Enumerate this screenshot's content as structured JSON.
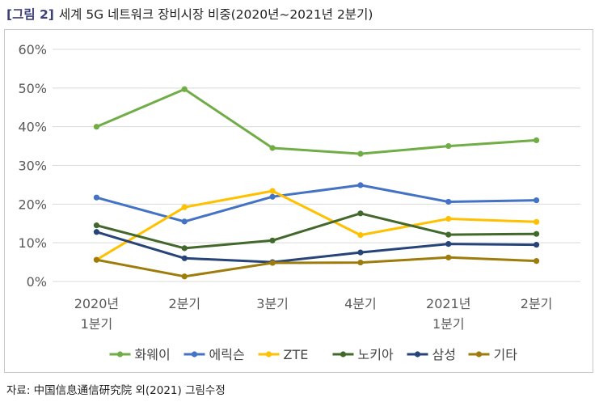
{
  "figure": {
    "label": "[그림 2]",
    "title": "세계 5G 네트워크 장비시장 비중(2020년~2021년 2분기)",
    "source": "자료: 中国信息通信研究院 외(2021) 그림수정"
  },
  "chart_data": {
    "type": "line",
    "categories": [
      [
        "2020년",
        "1분기"
      ],
      [
        "2분기"
      ],
      [
        "3분기"
      ],
      [
        "4분기"
      ],
      [
        "2021년",
        "1분기"
      ],
      [
        "2분기"
      ]
    ],
    "ylim": [
      0,
      60
    ],
    "yticks": [
      "0%",
      "10%",
      "20%",
      "30%",
      "40%",
      "50%",
      "60%"
    ],
    "grid": true,
    "legend_position": "bottom",
    "series": [
      {
        "name": "화웨이",
        "color": "#70ad47",
        "values": [
          40,
          49.7,
          34.5,
          33,
          35,
          36.5
        ]
      },
      {
        "name": "에릭슨",
        "color": "#4472c4",
        "values": [
          21.7,
          15.5,
          21.9,
          24.9,
          20.6,
          21
        ]
      },
      {
        "name": "ZTE",
        "color": "#ffc000",
        "values": [
          5.6,
          19.2,
          23.4,
          12,
          16.2,
          15.4
        ]
      },
      {
        "name": "노키아",
        "color": "#43682b",
        "values": [
          14.5,
          8.6,
          10.6,
          17.6,
          12.1,
          12.3
        ]
      },
      {
        "name": "삼성",
        "color": "#264478",
        "values": [
          12.8,
          6,
          5,
          7.5,
          9.7,
          9.5
        ]
      },
      {
        "name": "기타",
        "color": "#9e7c0c",
        "values": [
          5.6,
          1.3,
          4.8,
          4.9,
          6.2,
          5.3
        ]
      }
    ]
  }
}
